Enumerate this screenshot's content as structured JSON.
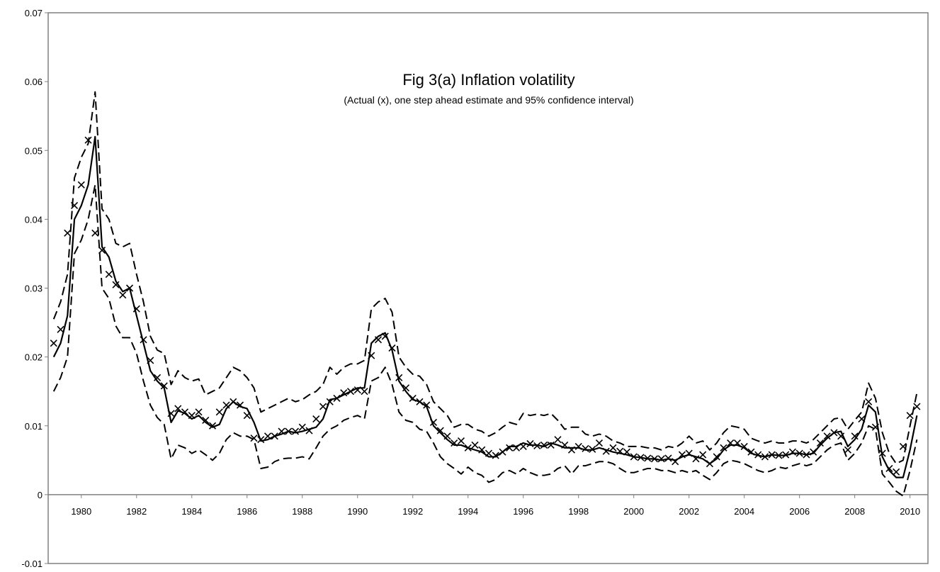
{
  "chart_data": {
    "type": "line",
    "title": "Fig 3(a) Inflation volatility",
    "subtitle": "(Actual (x), one step ahead estimate and 95% confidence interval)",
    "x": [
      1979,
      1979.25,
      1979.5,
      1979.75,
      1980,
      1980.25,
      1980.5,
      1980.75,
      1981,
      1981.25,
      1981.5,
      1981.75,
      1982,
      1982.25,
      1982.5,
      1982.75,
      1983,
      1983.25,
      1983.5,
      1983.75,
      1984,
      1984.25,
      1984.5,
      1984.75,
      1985,
      1985.25,
      1985.5,
      1985.75,
      1986,
      1986.25,
      1986.5,
      1986.75,
      1987,
      1987.25,
      1987.5,
      1987.75,
      1988,
      1988.25,
      1988.5,
      1988.75,
      1989,
      1989.25,
      1989.5,
      1989.75,
      1990,
      1990.25,
      1990.5,
      1990.75,
      1991,
      1991.25,
      1991.5,
      1991.75,
      1992,
      1992.25,
      1992.5,
      1992.75,
      1993,
      1993.25,
      1993.5,
      1993.75,
      1994,
      1994.25,
      1994.5,
      1994.75,
      1995,
      1995.25,
      1995.5,
      1995.75,
      1996,
      1996.25,
      1996.5,
      1996.75,
      1997,
      1997.25,
      1997.5,
      1997.75,
      1998,
      1998.25,
      1998.5,
      1998.75,
      1999,
      1999.25,
      1999.5,
      1999.75,
      2000,
      2000.25,
      2000.5,
      2000.75,
      2001,
      2001.25,
      2001.5,
      2001.75,
      2002,
      2002.25,
      2002.5,
      2002.75,
      2003,
      2003.25,
      2003.5,
      2003.75,
      2004,
      2004.25,
      2004.5,
      2004.75,
      2005,
      2005.25,
      2005.5,
      2005.75,
      2006,
      2006.25,
      2006.5,
      2006.75,
      2007,
      2007.25,
      2007.5,
      2007.75,
      2008,
      2008.25,
      2008.5,
      2008.75,
      2009,
      2009.25,
      2009.5,
      2009.75,
      2010,
      2010.25
    ],
    "series": [
      {
        "style": "markers",
        "color": "#000000",
        "values": [
          0.022,
          0.024,
          0.038,
          0.042,
          0.045,
          0.0515,
          0.038,
          0.0355,
          0.032,
          0.0305,
          0.029,
          0.03,
          0.027,
          0.0225,
          0.0195,
          0.017,
          0.0158,
          0.0118,
          0.0125,
          0.012,
          0.0115,
          0.012,
          0.0108,
          0.01,
          0.012,
          0.013,
          0.0135,
          0.013,
          0.0115,
          0.0082,
          0.008,
          0.0085,
          0.0085,
          0.0092,
          0.0092,
          0.0092,
          0.0098,
          0.0093,
          0.011,
          0.0128,
          0.0135,
          0.014,
          0.0148,
          0.015,
          0.0152,
          0.015,
          0.0202,
          0.0225,
          0.023,
          0.0213,
          0.017,
          0.0155,
          0.014,
          0.0135,
          0.013,
          0.0105,
          0.0093,
          0.0085,
          0.0075,
          0.0078,
          0.0068,
          0.0072,
          0.0065,
          0.006,
          0.0057,
          0.0062,
          0.0068,
          0.0068,
          0.007,
          0.0074,
          0.0071,
          0.0072,
          0.0072,
          0.008,
          0.0072,
          0.0065,
          0.007,
          0.0067,
          0.0066,
          0.0075,
          0.0063,
          0.0068,
          0.0063,
          0.0062,
          0.0055,
          0.0054,
          0.0053,
          0.0052,
          0.0052,
          0.0053,
          0.0048,
          0.0058,
          0.006,
          0.0052,
          0.0058,
          0.0045,
          0.0055,
          0.0068,
          0.0075,
          0.0075,
          0.007,
          0.0062,
          0.0058,
          0.0055,
          0.0058,
          0.0057,
          0.0058,
          0.0062,
          0.006,
          0.0058,
          0.0062,
          0.0075,
          0.0085,
          0.009,
          0.0085,
          0.0065,
          0.0085,
          0.011,
          0.0135,
          0.0098,
          0.006,
          0.0038,
          0.0033,
          0.007,
          0.0115,
          0.0128
        ]
      },
      {
        "style": "solid",
        "color": "#000000",
        "values": [
          0.02,
          0.022,
          0.026,
          0.04,
          0.042,
          0.045,
          0.052,
          0.036,
          0.0345,
          0.031,
          0.0295,
          0.03,
          0.026,
          0.022,
          0.018,
          0.0165,
          0.0155,
          0.0105,
          0.0122,
          0.0118,
          0.011,
          0.0115,
          0.0105,
          0.0098,
          0.0102,
          0.0125,
          0.0135,
          0.0128,
          0.0125,
          0.0105,
          0.0078,
          0.008,
          0.0085,
          0.0088,
          0.0092,
          0.009,
          0.0092,
          0.0095,
          0.0098,
          0.011,
          0.0138,
          0.014,
          0.0145,
          0.015,
          0.0155,
          0.0155,
          0.022,
          0.023,
          0.0235,
          0.021,
          0.0165,
          0.015,
          0.0138,
          0.0135,
          0.0128,
          0.01,
          0.009,
          0.008,
          0.0072,
          0.0072,
          0.0068,
          0.0065,
          0.0062,
          0.0055,
          0.0055,
          0.0062,
          0.007,
          0.007,
          0.0075,
          0.0072,
          0.0072,
          0.007,
          0.0075,
          0.0072,
          0.0068,
          0.0068,
          0.0068,
          0.0065,
          0.0065,
          0.0068,
          0.0065,
          0.0062,
          0.006,
          0.0058,
          0.0055,
          0.0054,
          0.0052,
          0.0052,
          0.005,
          0.0052,
          0.005,
          0.0055,
          0.0058,
          0.0055,
          0.0052,
          0.0045,
          0.0052,
          0.0065,
          0.0072,
          0.0072,
          0.0068,
          0.006,
          0.0057,
          0.0055,
          0.0058,
          0.0057,
          0.0057,
          0.006,
          0.006,
          0.0058,
          0.006,
          0.0072,
          0.0082,
          0.009,
          0.0092,
          0.007,
          0.008,
          0.0095,
          0.013,
          0.012,
          0.0055,
          0.0035,
          0.0025,
          0.0025,
          0.0065,
          0.0115
        ]
      },
      {
        "style": "dashed",
        "color": "#000000",
        "values": [
          0.0255,
          0.028,
          0.032,
          0.046,
          0.049,
          0.051,
          0.0585,
          0.0415,
          0.04,
          0.0365,
          0.036,
          0.0365,
          0.032,
          0.028,
          0.023,
          0.021,
          0.0205,
          0.016,
          0.018,
          0.017,
          0.0165,
          0.0168,
          0.0145,
          0.015,
          0.0155,
          0.017,
          0.0185,
          0.018,
          0.017,
          0.0155,
          0.012,
          0.0125,
          0.013,
          0.0135,
          0.014,
          0.0135,
          0.0138,
          0.0145,
          0.015,
          0.016,
          0.0185,
          0.0175,
          0.0185,
          0.019,
          0.019,
          0.0195,
          0.027,
          0.028,
          0.0285,
          0.0265,
          0.02,
          0.0185,
          0.0175,
          0.0172,
          0.016,
          0.0135,
          0.0125,
          0.0115,
          0.0098,
          0.0102,
          0.0102,
          0.0095,
          0.0092,
          0.0085,
          0.009,
          0.0098,
          0.0105,
          0.0102,
          0.0118,
          0.0115,
          0.0117,
          0.0115,
          0.0118,
          0.0108,
          0.0095,
          0.0098,
          0.0098,
          0.0088,
          0.0085,
          0.0088,
          0.0085,
          0.0078,
          0.0075,
          0.007,
          0.007,
          0.007,
          0.0068,
          0.0068,
          0.0065,
          0.007,
          0.0068,
          0.0075,
          0.0085,
          0.0075,
          0.0078,
          0.0065,
          0.0075,
          0.009,
          0.01,
          0.0098,
          0.0095,
          0.0082,
          0.0078,
          0.0075,
          0.0078,
          0.0075,
          0.0075,
          0.0078,
          0.0078,
          0.0075,
          0.008,
          0.009,
          0.01,
          0.011,
          0.0112,
          0.0095,
          0.0108,
          0.012,
          0.0162,
          0.014,
          0.009,
          0.006,
          0.0045,
          0.005,
          0.01,
          0.0148
        ]
      },
      {
        "style": "dashed",
        "color": "#000000",
        "values": [
          0.015,
          0.017,
          0.02,
          0.035,
          0.037,
          0.04,
          0.045,
          0.03,
          0.0285,
          0.0245,
          0.0228,
          0.0228,
          0.0205,
          0.0165,
          0.013,
          0.0112,
          0.0102,
          0.0052,
          0.0072,
          0.0068,
          0.006,
          0.0065,
          0.0058,
          0.005,
          0.006,
          0.008,
          0.009,
          0.0085,
          0.0085,
          0.008,
          0.0038,
          0.004,
          0.0048,
          0.0052,
          0.0053,
          0.0053,
          0.0055,
          0.0052,
          0.0068,
          0.0085,
          0.0095,
          0.01,
          0.0108,
          0.0112,
          0.0115,
          0.011,
          0.0165,
          0.017,
          0.0185,
          0.016,
          0.012,
          0.0108,
          0.0105,
          0.0095,
          0.0092,
          0.0075,
          0.0055,
          0.0045,
          0.0038,
          0.003,
          0.004,
          0.0032,
          0.0028,
          0.0018,
          0.0022,
          0.0032,
          0.0035,
          0.003,
          0.0038,
          0.0032,
          0.0028,
          0.0028,
          0.003,
          0.0038,
          0.0042,
          0.003,
          0.0042,
          0.0042,
          0.0045,
          0.0048,
          0.0048,
          0.0045,
          0.0038,
          0.0032,
          0.0032,
          0.0035,
          0.0038,
          0.0038,
          0.0035,
          0.0035,
          0.0032,
          0.0035,
          0.0032,
          0.0035,
          0.0028,
          0.0022,
          0.0032,
          0.0045,
          0.005,
          0.0048,
          0.0045,
          0.004,
          0.0035,
          0.0032,
          0.0035,
          0.004,
          0.0038,
          0.0042,
          0.0045,
          0.0042,
          0.0045,
          0.0055,
          0.0065,
          0.0072,
          0.0075,
          0.005,
          0.006,
          0.0075,
          0.01,
          0.0095,
          0.003,
          0.0018,
          0.0005,
          -0.0002,
          0.0035,
          0.008
        ]
      }
    ],
    "xlim": [
      1978.8,
      2010.65
    ],
    "xticks": [
      1980,
      1982,
      1984,
      1986,
      1988,
      1990,
      1992,
      1994,
      1996,
      1998,
      2000,
      2002,
      2004,
      2006,
      2008,
      2010
    ],
    "ylim": [
      -0.01,
      0.07
    ],
    "yticks": [
      -0.01,
      0,
      0.01,
      0.02,
      0.03,
      0.04,
      0.05,
      0.06,
      0.07
    ]
  }
}
